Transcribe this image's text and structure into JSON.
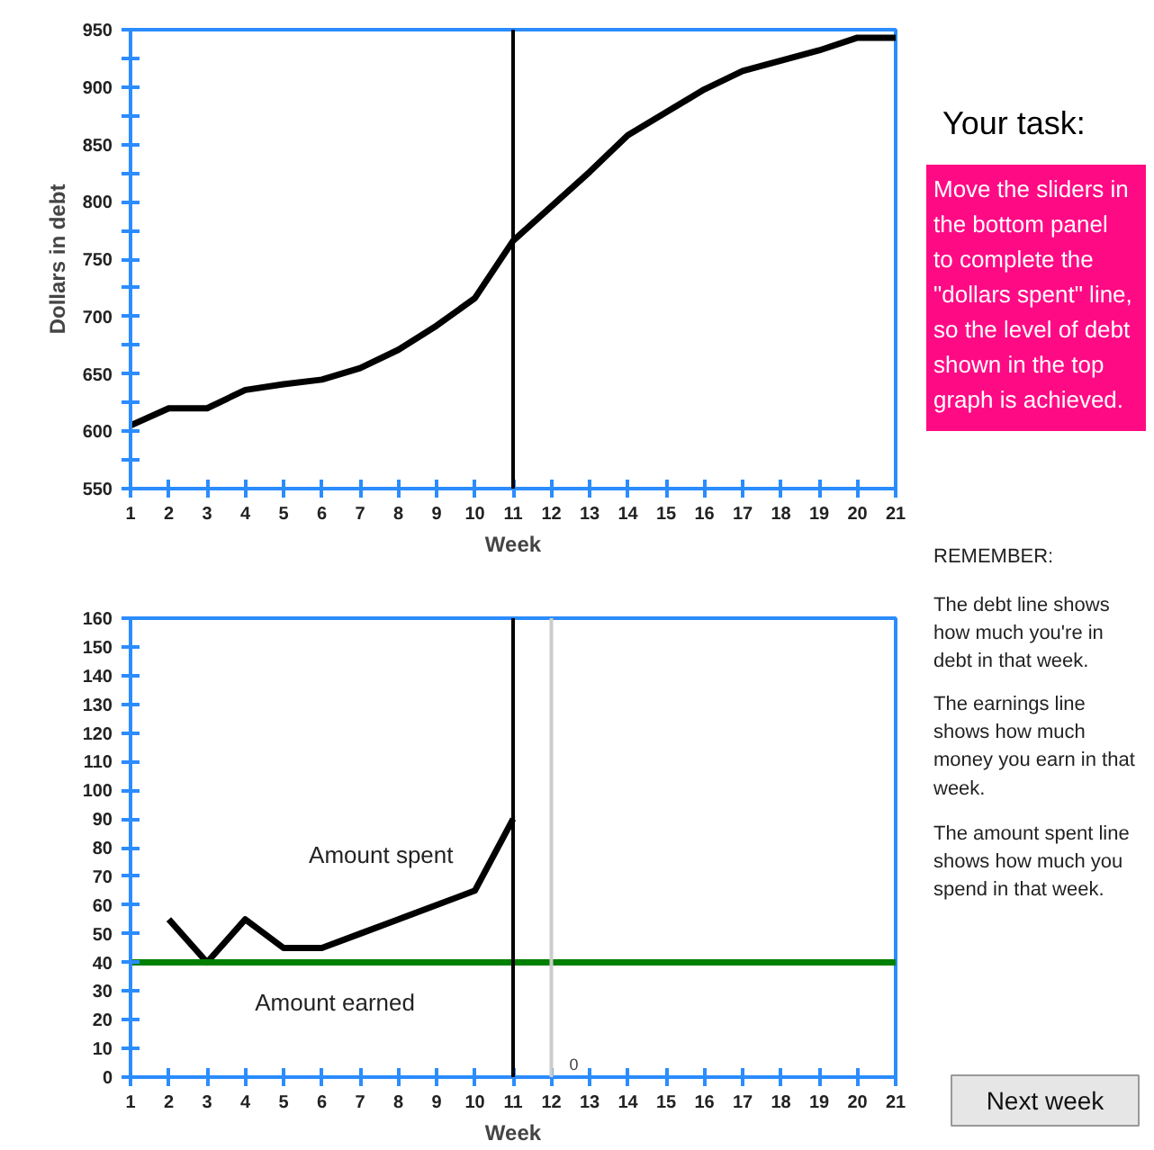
{
  "chart_data": [
    {
      "type": "line",
      "xlabel": "Week",
      "ylabel": "Dollars in debt",
      "x": [
        1,
        2,
        3,
        4,
        5,
        6,
        7,
        8,
        9,
        10,
        11,
        12,
        13,
        14,
        15,
        16,
        17,
        18,
        19,
        20,
        21
      ],
      "series": [
        {
          "color": "#000000",
          "values": [
            605,
            620,
            620,
            636,
            641,
            645,
            655,
            671,
            692,
            716,
            766,
            796,
            826,
            858,
            878,
            898,
            914,
            923,
            932,
            943,
            943
          ]
        }
      ],
      "xlim": [
        1,
        21
      ],
      "ylim": [
        550,
        950
      ],
      "xticks": [
        1,
        2,
        3,
        4,
        5,
        6,
        7,
        8,
        9,
        10,
        11,
        12,
        13,
        14,
        15,
        16,
        17,
        18,
        19,
        20,
        21
      ],
      "yticks": [
        550,
        {
          "value": 575,
          "label": null
        },
        600,
        {
          "value": 625,
          "label": null
        },
        650,
        {
          "value": 675,
          "label": null
        },
        700,
        {
          "value": 725,
          "label": null
        },
        750,
        {
          "value": 775,
          "label": null
        },
        800,
        {
          "value": 825,
          "label": null
        },
        850,
        {
          "value": 875,
          "label": null
        },
        900,
        {
          "value": 925,
          "label": null
        },
        950
      ],
      "ref_lines": [
        {
          "axis": "x",
          "value": 11,
          "color": "#000000"
        }
      ]
    },
    {
      "type": "line",
      "xlabel": "Week",
      "series": [
        {
          "name": "Amount spent",
          "color": "#000000",
          "x": [
            2,
            3,
            4,
            5,
            6,
            7,
            8,
            9,
            10,
            11
          ],
          "values": [
            55,
            40,
            55,
            45,
            45,
            50,
            55,
            60,
            65,
            90
          ]
        },
        {
          "name": "Amount earned",
          "color": "#008000",
          "x": [
            1,
            2,
            3,
            4,
            5,
            6,
            7,
            8,
            9,
            10,
            11,
            12,
            13,
            14,
            15,
            16,
            17,
            18,
            19,
            20,
            21
          ],
          "values": [
            40,
            40,
            40,
            40,
            40,
            40,
            40,
            40,
            40,
            40,
            40,
            40,
            40,
            40,
            40,
            40,
            40,
            40,
            40,
            40,
            40
          ]
        }
      ],
      "xlim": [
        1,
        21
      ],
      "ylim": [
        0,
        160
      ],
      "xticks": [
        1,
        2,
        3,
        4,
        5,
        6,
        7,
        8,
        9,
        10,
        11,
        12,
        13,
        14,
        15,
        16,
        17,
        18,
        19,
        20,
        21
      ],
      "yticks": [
        0,
        10,
        20,
        30,
        40,
        50,
        60,
        70,
        80,
        90,
        100,
        110,
        120,
        130,
        140,
        150,
        160
      ],
      "ref_lines": [
        {
          "axis": "x",
          "value": 11,
          "color": "#000000"
        },
        {
          "axis": "x",
          "value": 12,
          "color": "#cccccc"
        }
      ],
      "annotations": [
        "0"
      ]
    },
    {
      "type": "other",
      "title": "Your task:",
      "annotations": [
        "Move the sliders in\nthe bottom panel\nto complete the\n\"dollars spent\" line,\nso the level of debt\nshown in the top\ngraph is achieved.",
        "REMEMBER:",
        "The debt line shows\nhow much you're in\ndebt in that week.",
        "The earnings line\nshows how much\nmoney you earn in that\nweek.",
        "The amount spent line\nshows how much you\nspend in that week.",
        "Next week"
      ]
    }
  ]
}
